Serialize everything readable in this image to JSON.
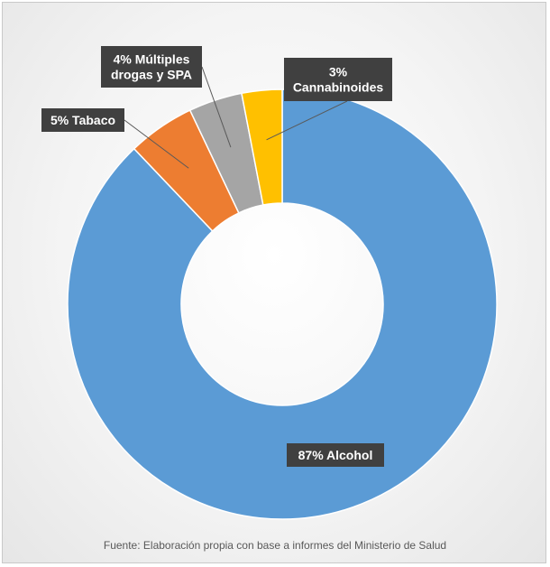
{
  "chart_data": {
    "type": "pie",
    "variant": "doughnut",
    "categories": [
      "Alcohol",
      "Tabaco",
      "Múltiples drogas y SPA",
      "Cannabinoides"
    ],
    "values": [
      87,
      5,
      4,
      3
    ],
    "unit": "%",
    "colors": [
      "#5b9bd5",
      "#ed7d31",
      "#a5a5a5",
      "#ffc000"
    ],
    "data_labels": [
      [
        "87% Alcohol"
      ],
      [
        "5% Tabaco"
      ],
      [
        "4% Múltiples",
        "drogas y SPA"
      ],
      [
        "3%",
        "Cannabinoides"
      ]
    ],
    "label_box_color": "#404040",
    "legend": "none"
  },
  "footer": {
    "source": "Fuente:  Elaboración propia con base a informes del Ministerio de Salud"
  }
}
